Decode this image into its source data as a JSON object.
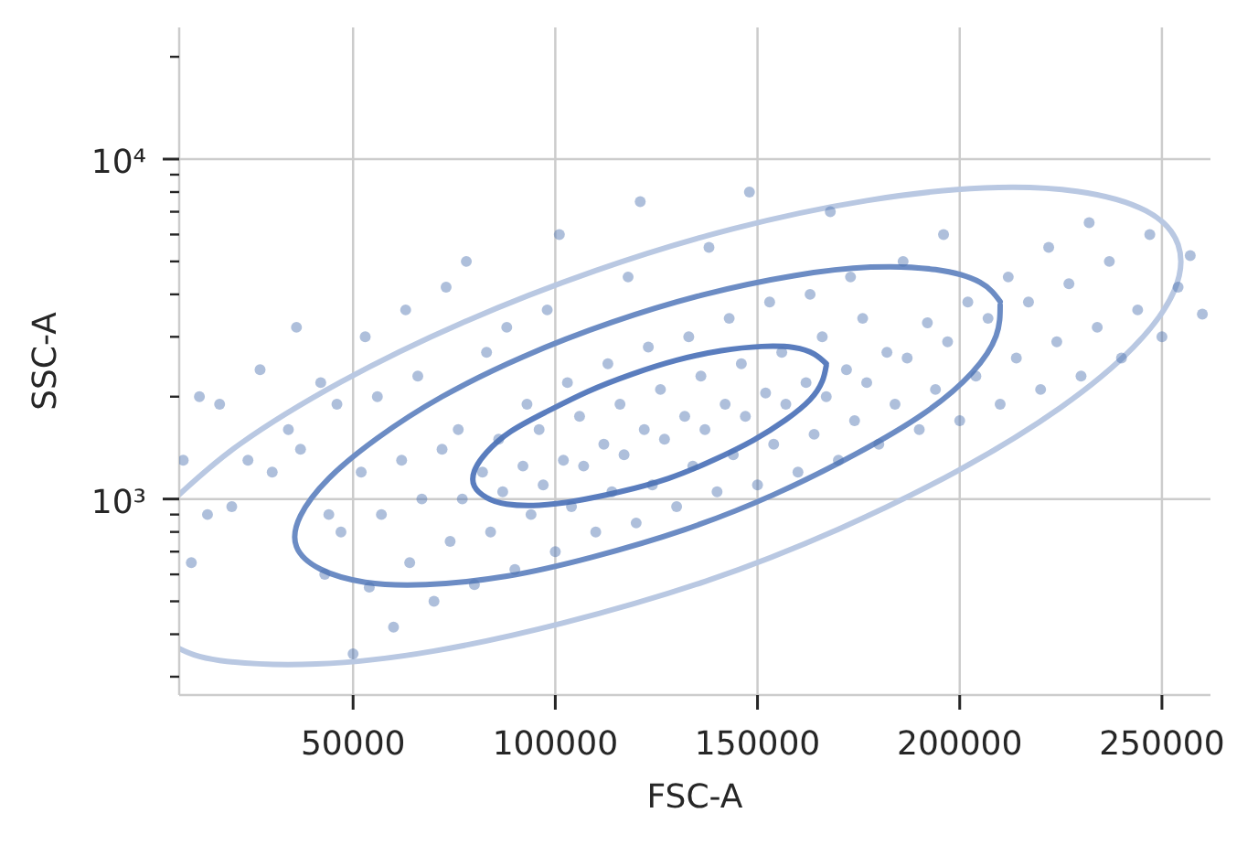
{
  "chart_data": {
    "type": "scatter",
    "xlabel": "FSC-A",
    "ylabel": "SSC-A",
    "log": "y",
    "grid": true,
    "xlim": [
      7000,
      262000
    ],
    "xticks": [
      50000,
      100000,
      150000,
      200000,
      250000
    ],
    "ylim": [
      265,
      24400
    ],
    "yticks": [
      {
        "value": 300,
        "label": null
      },
      {
        "value": 400,
        "label": null
      },
      {
        "value": 500,
        "label": null
      },
      {
        "value": 600,
        "label": null
      },
      {
        "value": 700,
        "label": null
      },
      {
        "value": 800,
        "label": null
      },
      {
        "value": 900,
        "label": null
      },
      {
        "value": 1000,
        "label": "10³"
      },
      {
        "value": 2000,
        "label": null
      },
      {
        "value": 3000,
        "label": null
      },
      {
        "value": 4000,
        "label": null
      },
      {
        "value": 5000,
        "label": null
      },
      {
        "value": 6000,
        "label": null
      },
      {
        "value": 7000,
        "label": null
      },
      {
        "value": 8000,
        "label": null
      },
      {
        "value": 9000,
        "label": null
      },
      {
        "value": 10000,
        "label": "10⁴"
      },
      {
        "value": 20000,
        "label": null
      }
    ],
    "series": [
      {
        "color": "#4c72b0",
        "marker": "circle",
        "x": [
          10000,
          14000,
          8000,
          12000,
          20000,
          24000,
          17000,
          30000,
          34000,
          27000,
          43000,
          44000,
          37000,
          42000,
          36000,
          50000,
          54000,
          47000,
          52000,
          46000,
          53000,
          60000,
          64000,
          57000,
          62000,
          56000,
          63000,
          70000,
          74000,
          67000,
          72000,
          66000,
          73000,
          80000,
          84000,
          77000,
          82000,
          76000,
          83000,
          78000,
          90000,
          94000,
          87000,
          92000,
          86000,
          93000,
          88000,
          100000,
          104000,
          97000,
          102000,
          96000,
          103000,
          98000,
          101000,
          110000,
          114000,
          107000,
          112000,
          106000,
          113000,
          120000,
          124000,
          117000,
          122000,
          116000,
          123000,
          118000,
          121000,
          130000,
          134000,
          127000,
          132000,
          126000,
          133000,
          140000,
          144000,
          137000,
          142000,
          136000,
          143000,
          138000,
          150000,
          154000,
          147000,
          152000,
          146000,
          153000,
          148000,
          160000,
          164000,
          157000,
          162000,
          156000,
          163000,
          170000,
          174000,
          167000,
          172000,
          166000,
          173000,
          168000,
          180000,
          184000,
          177000,
          182000,
          176000,
          190000,
          194000,
          187000,
          192000,
          186000,
          200000,
          204000,
          197000,
          202000,
          196000,
          210000,
          214000,
          207000,
          212000,
          220000,
          224000,
          217000,
          222000,
          230000,
          234000,
          227000,
          232000,
          240000,
          244000,
          237000,
          250000,
          254000,
          247000,
          260000,
          257000
        ],
        "values": [
          650,
          900,
          1300,
          2000,
          950,
          1300,
          1900,
          1200,
          1600,
          2400,
          600,
          900,
          1400,
          2200,
          3200,
          350,
          550,
          800,
          1200,
          1900,
          3000,
          420,
          650,
          900,
          1300,
          2000,
          3600,
          500,
          750,
          1000,
          1400,
          2300,
          4200,
          560,
          800,
          1000,
          1200,
          1600,
          2700,
          5000,
          620,
          900,
          1050,
          1250,
          1500,
          1900,
          3200,
          700,
          950,
          1100,
          1300,
          1600,
          2200,
          3600,
          6000,
          800,
          1050,
          1250,
          1450,
          1750,
          2500,
          850,
          1100,
          1350,
          1600,
          1900,
          2800,
          4500,
          7500,
          950,
          1250,
          1500,
          1750,
          2100,
          3000,
          1050,
          1350,
          1600,
          1900,
          2300,
          3400,
          5500,
          1100,
          1450,
          1750,
          2050,
          2500,
          3800,
          8000,
          1200,
          1550,
          1900,
          2200,
          2700,
          4000,
          1300,
          1700,
          2000,
          2400,
          3000,
          4500,
          7000,
          1450,
          1900,
          2200,
          2700,
          3400,
          1600,
          2100,
          2600,
          3300,
          5000,
          1700,
          2300,
          2900,
          3800,
          6000,
          1900,
          2600,
          3400,
          4500,
          2100,
          2900,
          3800,
          5500,
          2300,
          3200,
          4300,
          6500,
          2600,
          3600,
          5000,
          3000,
          4200,
          6000,
          3500,
          5200
        ]
      },
      {
        "type": "line",
        "color": "#5a7dbe",
        "x": [
          167000,
          166000,
          163000,
          157000,
          149000,
          139000,
          128000,
          116000,
          105000,
          96000,
          88000,
          83000,
          80000,
          80000,
          83000,
          89000,
          98000,
          108000,
          119000,
          130000,
          141000,
          151000,
          159000,
          164000,
          167000
        ],
        "values": [
          2470,
          2220,
          1960,
          1710,
          1490,
          1300,
          1150,
          1050,
          987,
          959,
          966,
          1010,
          1090,
          1210,
          1370,
          1580,
          1810,
          2070,
          2330,
          2560,
          2730,
          2810,
          2790,
          2670,
          2500
        ]
      },
      {
        "type": "line",
        "color": "#6c8cc4",
        "x": [
          210000,
          209000,
          203000,
          191000,
          174000,
          154000,
          132000,
          109000,
          88000,
          68000,
          53000,
          42000,
          36000,
          37000,
          44000,
          56000,
          72000,
          92000,
          114000,
          137000,
          159000,
          178000,
          194000,
          205000,
          210000
        ],
        "values": [
          3720,
          3020,
          2350,
          1780,
          1350,
          1030,
          813,
          674,
          593,
          560,
          569,
          621,
          724,
          893,
          1150,
          1510,
          2000,
          2620,
          3310,
          4000,
          4540,
          4810,
          4730,
          4340,
          3810
        ]
      },
      {
        "type": "line",
        "color": "#b9c8e2",
        "x": [
          7000,
          22000,
          47000,
          77000,
          110000,
          144000,
          177000,
          206000,
          229000,
          246000,
          254000,
          253000,
          243000,
          225000,
          200000,
          170000,
          137000,
          102000,
          70000,
          41000,
          17000,
          7000
        ],
        "values": [
          1030,
          1450,
          2210,
          3300,
          4700,
          6240,
          7550,
          8230,
          8040,
          7050,
          5600,
          4090,
          2800,
          1860,
          1220,
          815,
          572,
          432,
          357,
          327,
          335,
          363
        ]
      }
    ]
  }
}
